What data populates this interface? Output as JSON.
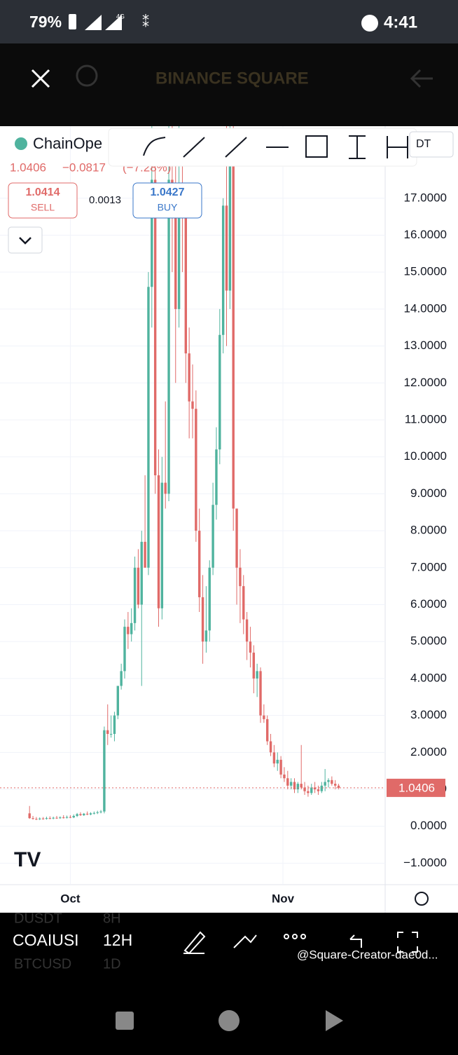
{
  "status_bar": {
    "battery": "79%",
    "network": "4G",
    "time": "4:41"
  },
  "header": {
    "title": "BINANCE SQUARE"
  },
  "symbol": {
    "name": "ChainOpe",
    "pair_suffix": "DT",
    "price": "1.0406",
    "change": "−0.0817",
    "change_pct": "(−7.28%)"
  },
  "order": {
    "sell_price": "1.0414",
    "sell": "SELL",
    "spread": "0.0013",
    "buy_price": "1.0427",
    "buy": "BUY"
  },
  "chart_data": {
    "type": "candlestick",
    "xlim": [
      -8.7,
      104.7
    ],
    "xticks": [
      {
        "value": 12,
        "label": "Oct"
      },
      {
        "value": 74.6,
        "label": "Nov"
      }
    ],
    "ylim": [
      -1.58,
      18.95
    ],
    "yticks": [
      {
        "value": -1,
        "label": "−1.0000"
      },
      {
        "value": 0,
        "label": "0.0000"
      },
      {
        "value": 1,
        "label": "1.0000"
      },
      {
        "value": 2,
        "label": "2.0000"
      },
      {
        "value": 3,
        "label": "3.0000"
      },
      {
        "value": 4,
        "label": "4.0000"
      },
      {
        "value": 5,
        "label": "5.0000"
      },
      {
        "value": 6,
        "label": "6.0000"
      },
      {
        "value": 7,
        "label": "7.0000"
      },
      {
        "value": 8,
        "label": "8.0000"
      },
      {
        "value": 9,
        "label": "9.0000"
      },
      {
        "value": 10,
        "label": "10.0000"
      },
      {
        "value": 11,
        "label": "11.0000"
      },
      {
        "value": 12,
        "label": "12.0000"
      },
      {
        "value": 13,
        "label": "13.0000"
      },
      {
        "value": 14,
        "label": "14.0000"
      },
      {
        "value": 15,
        "label": "15.0000"
      },
      {
        "value": 16,
        "label": "16.0000"
      },
      {
        "value": 17,
        "label": "17.0000"
      }
    ],
    "grid": true,
    "up_color": "#4fb39e",
    "down_color": "#e06a68",
    "last_price": {
      "value": 1.0406,
      "label": "1.0406"
    },
    "open": [
      0.35,
      0.22,
      0.2,
      0.19,
      0.21,
      0.2,
      0.22,
      0.21,
      0.23,
      0.22,
      0.24,
      0.23,
      0.25,
      0.24,
      0.28,
      0.33,
      0.3,
      0.34,
      0.32,
      0.35,
      0.36,
      0.38,
      0.4,
      2.6,
      2.5,
      2.5,
      3.0,
      3.8,
      4.2,
      5.4,
      5.2,
      5.5,
      7.0,
      6.0,
      7.7,
      7.0,
      14.6,
      17.5,
      9.5,
      5.9,
      9.3,
      9.0,
      17.5,
      16.5,
      14,
      17,
      16.5,
      12.8,
      11.5,
      11.3,
      8,
      6.2,
      5.0,
      5.3,
      7,
      8.7,
      10.2,
      13.3,
      16.8,
      14.5,
      18.5,
      8.6,
      7,
      6.5,
      5.6,
      5.0,
      4.7,
      4.0,
      4.2,
      3.0,
      2.9,
      2.3,
      2.0,
      1.7,
      1.8,
      1.4,
      1.3,
      1.1,
      1.2,
      1.0,
      1.15,
      1.05,
      0.95,
      0.9,
      1.05,
      1.0,
      0.95,
      1.1,
      1.2,
      1.25,
      1.15,
      1.1
    ],
    "high": [
      0.55,
      0.28,
      0.25,
      0.24,
      0.25,
      0.26,
      0.27,
      0.26,
      0.28,
      0.27,
      0.3,
      0.29,
      0.3,
      0.32,
      0.36,
      0.38,
      0.36,
      0.4,
      0.38,
      0.4,
      0.42,
      0.44,
      2.7,
      3.3,
      3.0,
      3.1,
      3.8,
      4.4,
      5.6,
      5.8,
      5.9,
      7.3,
      7.5,
      8.0,
      9.5,
      15.0,
      19,
      18.5,
      10.2,
      10,
      11.5,
      19,
      19,
      18.5,
      19,
      18.5,
      17,
      13.5,
      12.5,
      11.8,
      8.6,
      6.8,
      6.5,
      7.2,
      9.3,
      10.8,
      14,
      17,
      19,
      19,
      19,
      8.6,
      7.5,
      6.8,
      5.8,
      5.4,
      4.9,
      4.4,
      4.3,
      3.3,
      3.0,
      2.5,
      2.2,
      2.0,
      1.9,
      1.6,
      1.5,
      1.3,
      1.3,
      1.2,
      2.2,
      1.2,
      1.1,
      1.15,
      1.2,
      1.1,
      1.2,
      1.55,
      1.3,
      1.35,
      1.25,
      1.15
    ],
    "low": [
      0.2,
      0.18,
      0.17,
      0.17,
      0.18,
      0.18,
      0.19,
      0.19,
      0.2,
      0.2,
      0.21,
      0.21,
      0.22,
      0.22,
      0.25,
      0.28,
      0.28,
      0.3,
      0.3,
      0.32,
      0.33,
      0.35,
      0.35,
      2.2,
      2.4,
      2.3,
      2.9,
      3.7,
      4.0,
      4.8,
      5.0,
      5.3,
      5.9,
      3.8,
      7.0,
      6.8,
      13.5,
      9.0,
      5.4,
      5.6,
      8.6,
      8.8,
      15,
      12,
      13.5,
      15,
      12,
      10.5,
      10.5,
      7.7,
      5.8,
      4.4,
      4.7,
      5.0,
      6.8,
      8.3,
      9.8,
      12.8,
      13,
      14,
      8,
      6.0,
      5.5,
      5.2,
      4.5,
      4.3,
      3.6,
      3.5,
      2.8,
      2.8,
      2.2,
      1.9,
      1.6,
      1.5,
      1.3,
      1.2,
      1.0,
      1.0,
      0.9,
      0.9,
      1.0,
      0.85,
      0.8,
      0.85,
      0.9,
      0.85,
      0.9,
      0.95,
      1.05,
      1.1,
      1.0,
      1.0
    ],
    "close": [
      0.22,
      0.2,
      0.19,
      0.21,
      0.2,
      0.22,
      0.21,
      0.23,
      0.22,
      0.24,
      0.23,
      0.25,
      0.24,
      0.28,
      0.33,
      0.3,
      0.34,
      0.32,
      0.35,
      0.36,
      0.38,
      0.4,
      2.6,
      2.5,
      2.5,
      3.0,
      3.8,
      4.2,
      5.4,
      5.2,
      5.5,
      7.0,
      6.0,
      7.7,
      7.0,
      14.6,
      17.5,
      9.5,
      5.9,
      9.3,
      9.0,
      17.5,
      16.5,
      14,
      17,
      16.5,
      12.8,
      11.5,
      11.3,
      8.0,
      6.2,
      5.0,
      5.3,
      7.0,
      8.7,
      10.2,
      13.3,
      16.8,
      14.5,
      18.5,
      8.6,
      7.0,
      6.5,
      5.6,
      5.0,
      4.7,
      4.0,
      4.2,
      3.0,
      2.9,
      2.3,
      2.0,
      1.7,
      1.8,
      1.4,
      1.3,
      1.1,
      1.2,
      1.0,
      1.15,
      1.05,
      0.95,
      0.9,
      1.05,
      1.0,
      0.95,
      1.1,
      1.2,
      1.25,
      1.15,
      1.1,
      1.0406
    ]
  },
  "bottom_bar": {
    "symbol_above": "DUSDT",
    "interval_above": "8H",
    "symbol": "COAIUSI",
    "interval": "12H",
    "symbol_below": "BTCUSD",
    "interval_below": "1D",
    "watermark": "@Square-Creator-dae0d..."
  }
}
